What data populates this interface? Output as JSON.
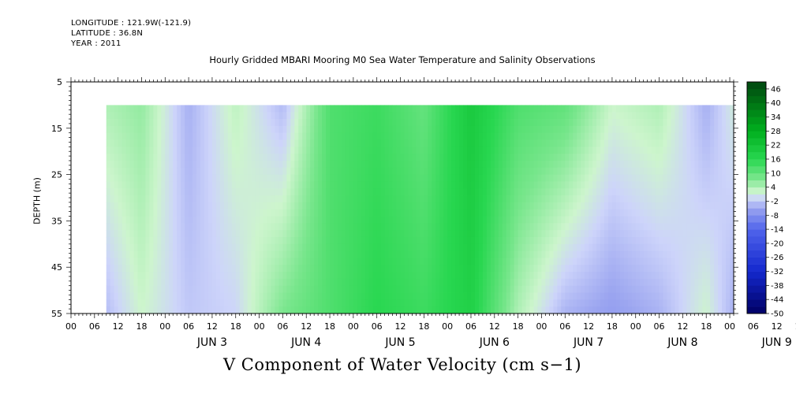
{
  "header": {
    "longitude": "LONGITUDE : 121.9W(-121.9)",
    "latitude": "LATITUDE : 36.8N",
    "year": "YEAR : 2011"
  },
  "chart_data": {
    "type": "heatmap",
    "title": "Hourly Gridded MBARI Mooring M0 Sea Water Temperature and Salinity Observations",
    "bottom_title": "V Component of Water Velocity (cm s−1)",
    "ylabel": "DEPTH (m)",
    "xlabel": "",
    "xlim": [
      "2011-06-02T00:00",
      "2011-06-09T01:00"
    ],
    "data_start": "2011-06-02T09:00",
    "depth_range": [
      10,
      55
    ],
    "ylim": [
      55,
      5
    ],
    "y_ticks": [
      5,
      15,
      25,
      35,
      45,
      55
    ],
    "y_tick_labels": [
      "5",
      "15",
      "25",
      "35",
      "45",
      "55"
    ],
    "x_hour_labels": [
      "00",
      "06",
      "12",
      "18",
      "00",
      "06",
      "12",
      "18",
      "00",
      "06",
      "12",
      "18",
      "00",
      "06",
      "12",
      "18",
      "00",
      "06",
      "12",
      "18",
      "00",
      "06",
      "12",
      "18",
      "00",
      "06",
      "12",
      "18",
      "00",
      "06",
      "12",
      "18",
      "00"
    ],
    "x_day_labels": [
      "JUN  3",
      "JUN  4",
      "JUN  5",
      "JUN  6",
      "JUN  7",
      "JUN  8",
      "JUN  9"
    ],
    "colorbar": {
      "labels": [
        "46",
        "40",
        "34",
        "28",
        "22",
        "16",
        "10",
        "4",
        "-2",
        "-8",
        "-14",
        "-20",
        "-26",
        "-32",
        "-38",
        "-44",
        "-50"
      ],
      "levels": [
        -50,
        -47,
        -44,
        -41,
        -38,
        -35,
        -32,
        -29,
        -26,
        -23,
        -20,
        -17,
        -14,
        -11,
        -8,
        -5,
        -2,
        1,
        4,
        7,
        10,
        13,
        16,
        19,
        22,
        25,
        28,
        31,
        34,
        37,
        40,
        43,
        46,
        49
      ]
    },
    "v_component_profile": {
      "description_units": "cm s-1",
      "times": [
        "06-02 09",
        "06-02 18",
        "06-03 06",
        "06-03 18",
        "06-04 06",
        "06-04 18",
        "06-05 06",
        "06-05 18",
        "06-06 06",
        "06-06 18",
        "06-07 06",
        "06-07 18",
        "06-08 06",
        "06-08 18",
        "06-09 01"
      ],
      "surface": [
        4,
        6,
        -4,
        3,
        -3,
        12,
        14,
        10,
        20,
        12,
        10,
        2,
        4,
        -4,
        1
      ],
      "deep": [
        -3,
        2,
        -2,
        -1,
        8,
        12,
        16,
        14,
        18,
        4,
        -4,
        -6,
        -4,
        2,
        -4
      ]
    }
  }
}
